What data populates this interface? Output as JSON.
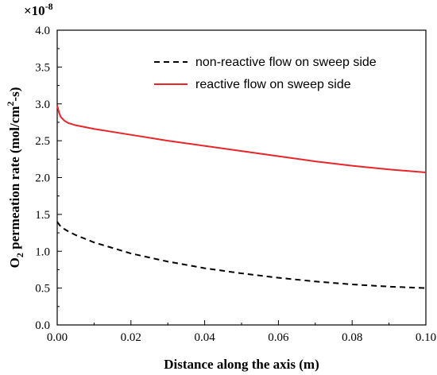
{
  "chart_data": {
    "type": "line",
    "xlabel": "Distance along the axis (m)",
    "ylabel": {
      "prefix": "O",
      "sub": "2",
      "mid": " permeation rate (mol/cm",
      "sup": "2",
      "suffix": "-s)"
    },
    "y_multiplier": {
      "base": "×10",
      "exp": "-8"
    },
    "xlim": [
      0.0,
      0.1
    ],
    "ylim": [
      0.0,
      4.0
    ],
    "x_ticks": [
      0.0,
      0.02,
      0.04,
      0.06,
      0.08,
      0.1
    ],
    "x_tick_labels": [
      "0.00",
      "0.02",
      "0.04",
      "0.06",
      "0.08",
      "0.10"
    ],
    "y_ticks": [
      0.0,
      0.5,
      1.0,
      1.5,
      2.0,
      2.5,
      3.0,
      3.5,
      4.0
    ],
    "y_tick_labels": [
      "0.0",
      "0.5",
      "1.0",
      "1.5",
      "2.0",
      "2.5",
      "3.0",
      "3.5",
      "4.0"
    ],
    "grid": false,
    "legend_position": "top-right",
    "series": [
      {
        "name": "non-reactive flow on sweep side",
        "color": "#000000",
        "dash": "dashed",
        "x": [
          0.0,
          0.001,
          0.003,
          0.005,
          0.01,
          0.02,
          0.03,
          0.04,
          0.05,
          0.06,
          0.07,
          0.08,
          0.09,
          0.1
        ],
        "y": [
          1.4,
          1.33,
          1.27,
          1.22,
          1.12,
          0.97,
          0.86,
          0.77,
          0.7,
          0.64,
          0.59,
          0.55,
          0.52,
          0.5
        ]
      },
      {
        "name": "reactive flow on sweep side",
        "color": "#e8262a",
        "dash": "solid",
        "x": [
          0.0,
          0.0005,
          0.001,
          0.002,
          0.003,
          0.005,
          0.01,
          0.02,
          0.03,
          0.04,
          0.05,
          0.06,
          0.07,
          0.08,
          0.09,
          0.1
        ],
        "y": [
          2.98,
          2.88,
          2.82,
          2.77,
          2.74,
          2.71,
          2.66,
          2.58,
          2.5,
          2.43,
          2.36,
          2.29,
          2.22,
          2.16,
          2.11,
          2.07
        ]
      }
    ]
  }
}
